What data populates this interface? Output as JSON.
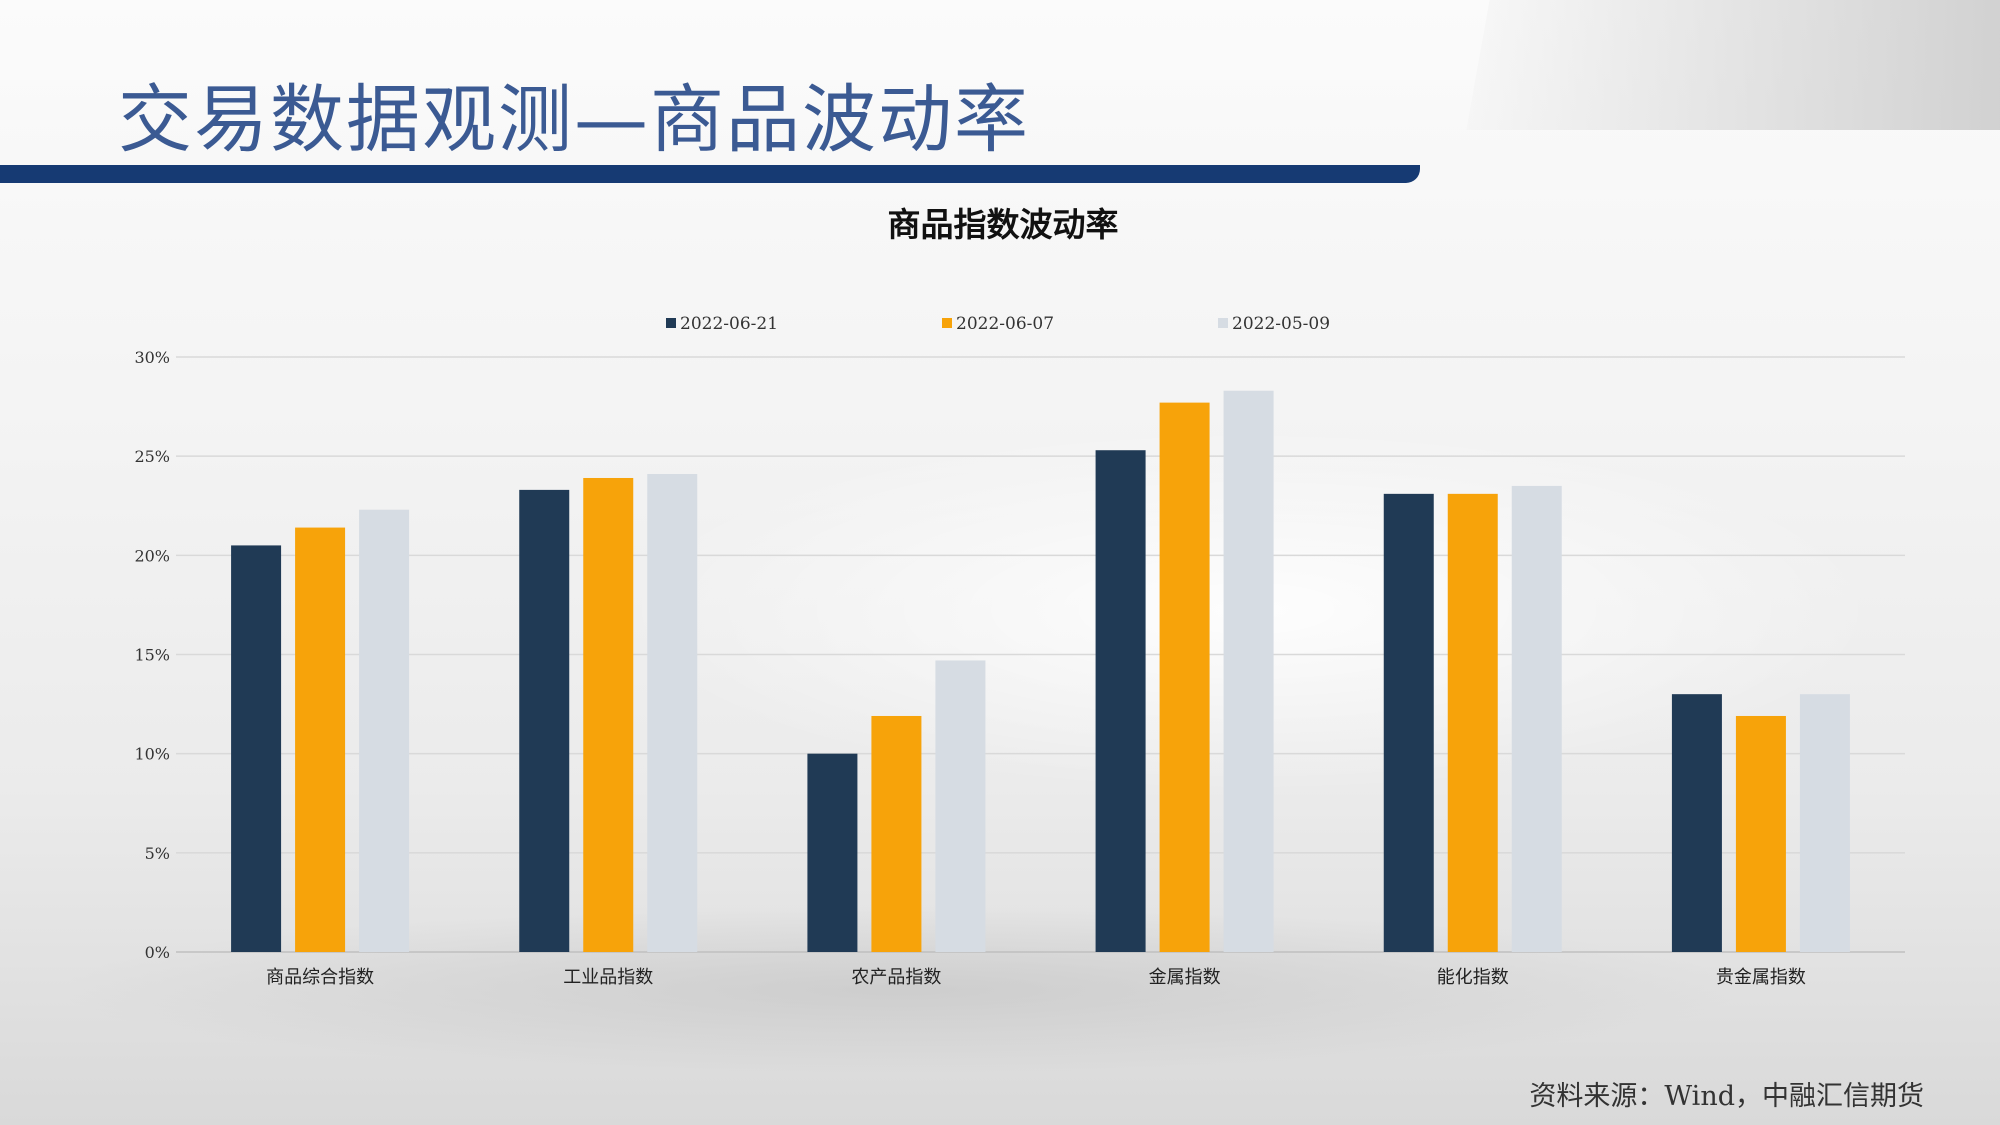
{
  "slide": {
    "title": "交易数据观测—商品波动率",
    "source": "资料来源：Wind，中融汇信期货"
  },
  "colors": {
    "title": "#3b5a93",
    "header_bar": "#163a73",
    "series": [
      "#203a55",
      "#f7a30a",
      "#d6dce3"
    ],
    "grid": "#d9d9d9"
  },
  "chart_data": {
    "type": "bar",
    "title": "商品指数波动率",
    "xlabel": "",
    "ylabel": "",
    "categories": [
      "商品综合指数",
      "工业品指数",
      "农产品指数",
      "金属指数",
      "能化指数",
      "贵金属指数"
    ],
    "series": [
      {
        "name": "2022-06-21",
        "values": [
          20.5,
          23.3,
          10.0,
          25.3,
          23.1,
          13.0
        ]
      },
      {
        "name": "2022-06-07",
        "values": [
          21.4,
          23.9,
          11.9,
          27.7,
          23.1,
          11.9
        ]
      },
      {
        "name": "2022-05-09",
        "values": [
          22.3,
          24.1,
          14.7,
          28.3,
          23.5,
          13.0
        ]
      }
    ],
    "ylim": [
      0,
      30
    ],
    "yticks": [
      0,
      5,
      10,
      15,
      20,
      25,
      30
    ],
    "ytick_labels": [
      "0%",
      "5%",
      "10%",
      "15%",
      "20%",
      "25%",
      "30%"
    ],
    "grid": true,
    "legend_position": "top"
  }
}
